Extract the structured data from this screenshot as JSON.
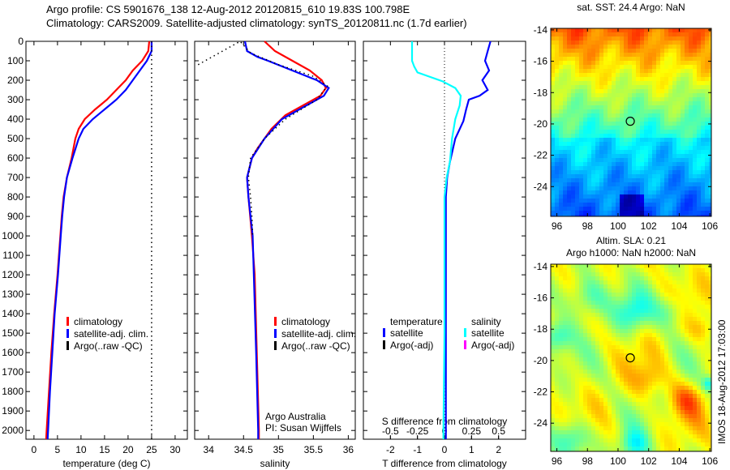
{
  "header": {
    "line1": "Argo profile: CS 5901676_138 12-Aug-2012 20120815_610 19.83S 100.798E",
    "line2": "Climatology: CARS2009. Satellite-adjusted climatology: synTS_20120811.nc (1.7d earlier)"
  },
  "colors": {
    "climatology": "#ff0000",
    "satellite": "#0000ff",
    "argo": "#000000",
    "sal_satellite": "#00ffff",
    "sal_argo": "#ff00ff"
  },
  "chart_data": [
    {
      "type": "line",
      "id": "temperature",
      "xlabel": "temperature (deg C)",
      "ylabel": "",
      "xlim": [
        -1.7,
        32.6
      ],
      "ylim": [
        0,
        2045
      ],
      "xticks": [
        0,
        5,
        10,
        15,
        20,
        25,
        30
      ],
      "yticks": [
        0,
        100,
        200,
        300,
        400,
        500,
        600,
        700,
        800,
        900,
        1000,
        1100,
        1200,
        1300,
        1400,
        1500,
        1600,
        1700,
        1800,
        1900,
        2000
      ],
      "legend": [
        "climatology",
        "satellite-adj. clim.",
        "Argo(..raw -QC)"
      ],
      "legend_placement": "lower-center",
      "series": [
        {
          "name": "climatology",
          "color": "#ff0000",
          "depth": [
            0,
            50,
            100,
            150,
            200,
            250,
            300,
            350,
            400,
            450,
            500,
            600,
            700,
            800,
            900,
            1000,
            1200,
            1400,
            1600,
            1800,
            2000,
            2045
          ],
          "values": [
            24.5,
            24.3,
            23,
            21,
            19.5,
            17.5,
            15.5,
            13,
            10.8,
            9.5,
            8.8,
            8,
            7,
            6.3,
            5.9,
            5.6,
            5,
            4.3,
            3.7,
            3.2,
            2.7,
            2.6
          ]
        },
        {
          "name": "satellite-adj. clim.",
          "color": "#0000ff",
          "depth": [
            0,
            50,
            100,
            150,
            200,
            250,
            300,
            350,
            400,
            450,
            500,
            600,
            700,
            800,
            900,
            1000,
            1200,
            1400,
            1600,
            1800,
            2000,
            2045
          ],
          "values": [
            25,
            25,
            24,
            22.5,
            21,
            19.5,
            17.5,
            15,
            12.5,
            10.5,
            9.5,
            8.2,
            7,
            6.4,
            6,
            5.7,
            5.1,
            4.4,
            3.9,
            3.4,
            3,
            2.9
          ]
        },
        {
          "name": "Argo(..raw -QC)",
          "color": "#000000",
          "dotted": true,
          "depth": [
            0,
            2045
          ],
          "values": [
            25,
            25
          ]
        }
      ]
    },
    {
      "type": "line",
      "id": "salinity",
      "xlabel": "salinity",
      "xlim": [
        33.8,
        36.1
      ],
      "ylim": [
        0,
        2045
      ],
      "xticks": [
        34,
        34.5,
        35,
        35.5,
        36
      ],
      "legend": [
        "climatology",
        "satellite-adj. clim.",
        "Argo(..raw -QC)"
      ],
      "legend_placement": "lower-center",
      "annotation": [
        "Argo Australia",
        "PI: Susan Wijffels"
      ],
      "series": [
        {
          "name": "climatology",
          "color": "#ff0000",
          "depth": [
            0,
            50,
            100,
            150,
            200,
            240,
            280,
            320,
            380,
            450,
            500,
            550,
            600,
            700,
            800,
            1000,
            1200,
            1600,
            2000,
            2045
          ],
          "values": [
            34.8,
            34.95,
            35.2,
            35.45,
            35.62,
            35.68,
            35.6,
            35.4,
            35.1,
            34.9,
            34.8,
            34.7,
            34.62,
            34.55,
            34.57,
            34.62,
            34.66,
            34.69,
            34.72,
            34.72
          ]
        },
        {
          "name": "satellite-adj. clim.",
          "color": "#0000ff",
          "depth": [
            0,
            50,
            80,
            100,
            150,
            200,
            240,
            280,
            330,
            400,
            500,
            600,
            700,
            800,
            1000,
            1600,
            2000,
            2045
          ],
          "values": [
            34.52,
            34.55,
            34.7,
            34.85,
            35.2,
            35.55,
            35.72,
            35.65,
            35.4,
            35.05,
            34.8,
            34.62,
            34.55,
            34.57,
            34.63,
            34.68,
            34.71,
            34.71
          ]
        },
        {
          "name": "Argo(..raw -QC)",
          "color": "#000000",
          "dotted": true,
          "depth": [
            120,
            0,
            60,
            120,
            180,
            230,
            300,
            400,
            500,
            600,
            700,
            800,
            900,
            1000
          ],
          "values": [
            33.85,
            34.45,
            34.6,
            35.0,
            35.5,
            35.7,
            35.55,
            35.1,
            34.8,
            34.6,
            34.57,
            34.6,
            34.62,
            34.63
          ]
        }
      ]
    },
    {
      "type": "line",
      "id": "difference",
      "xlabel": "T difference from climatology",
      "xlabel_top": "S difference from climatology",
      "xlim": [
        -3,
        3
      ],
      "xlim_salinity": [
        -0.75,
        0.75
      ],
      "ylim": [
        0,
        2045
      ],
      "xticks": [
        -2,
        -1,
        0,
        1,
        2
      ],
      "xticks_salinity": [
        "-0.5",
        "-0.25",
        "0",
        "0.25",
        "0.5"
      ],
      "legend_temperature": {
        "title": "temperature",
        "items": [
          "satellite",
          "Argo(-adj)"
        ]
      },
      "legend_salinity": {
        "title": "salinity",
        "items": [
          "satellite",
          "Argo(-adj)"
        ]
      },
      "series": [
        {
          "name": "temperature satellite",
          "color": "#0000ff",
          "depth": [
            0,
            50,
            100,
            150,
            200,
            250,
            280,
            300,
            350,
            410,
            500,
            620,
            700,
            800,
            1000,
            1500,
            2000,
            2045
          ],
          "values": [
            1.7,
            1.6,
            1.5,
            1.65,
            1.4,
            1.6,
            1.3,
            0.9,
            0.8,
            0.7,
            0.4,
            0.2,
            0.1,
            0.05,
            0.05,
            0.05,
            0.05,
            0.05
          ]
        },
        {
          "name": "salinity satellite",
          "color": "#00ffff",
          "salinity": true,
          "depth": [
            0,
            50,
            100,
            130,
            160,
            205,
            240,
            280,
            330,
            400,
            500,
            620,
            700,
            800,
            1000,
            1500,
            2000,
            2045
          ],
          "values": [
            -0.3,
            -0.3,
            -0.3,
            -0.28,
            -0.25,
            -0.02,
            0.1,
            0.15,
            0.14,
            0.1,
            0.07,
            0.05,
            0.02,
            0,
            0,
            0,
            -0.01,
            -0.01
          ]
        }
      ]
    }
  ],
  "maps": [
    {
      "id": "sst",
      "title": "sat. SST: 24.4 Argo: NaN",
      "title2": "",
      "lon_ticks": [
        96,
        98,
        100,
        102,
        104,
        106
      ],
      "lat_ticks": [
        -14,
        -16,
        -18,
        -20,
        -22,
        -24
      ],
      "lon_range": [
        95.6,
        106.1
      ],
      "lat_range": [
        -25.9,
        -13.9
      ],
      "argo_position": [
        100.8,
        -19.83
      ]
    },
    {
      "id": "sla",
      "title": "Altim. SLA: 0.21",
      "title2": "Argo h1000: NaN h2000: NaN",
      "lon_ticks": [
        96,
        98,
        100,
        102,
        104,
        106
      ],
      "lat_ticks": [
        -14,
        -16,
        -18,
        -20,
        -22,
        -24
      ],
      "lon_range": [
        95.6,
        106.1
      ],
      "lat_range": [
        -25.8,
        -13.85
      ],
      "argo_position": [
        100.8,
        -19.83
      ]
    }
  ],
  "footer": {
    "stamp": "IMOS 18-Aug-2012 17:03:00"
  }
}
